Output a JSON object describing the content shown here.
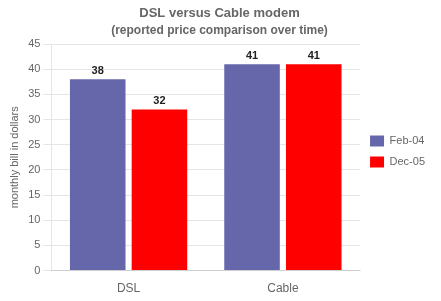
{
  "chart_data": {
    "type": "bar",
    "title": "DSL versus Cable modem",
    "subtitle": "(reported price comparison over time)",
    "categories": [
      "DSL",
      "Cable"
    ],
    "series": [
      {
        "name": "Feb-04",
        "color": "#6666aa",
        "values": [
          38,
          41
        ]
      },
      {
        "name": "Dec-05",
        "color": "#ff0000",
        "values": [
          32,
          41
        ]
      }
    ],
    "y_label": "monthly bill in dollars",
    "ylim": [
      0,
      45
    ],
    "yticks": [
      0,
      5,
      10,
      15,
      20,
      25,
      30,
      35,
      40,
      45
    ],
    "grid": true,
    "legend": "right",
    "data_labels": true
  }
}
